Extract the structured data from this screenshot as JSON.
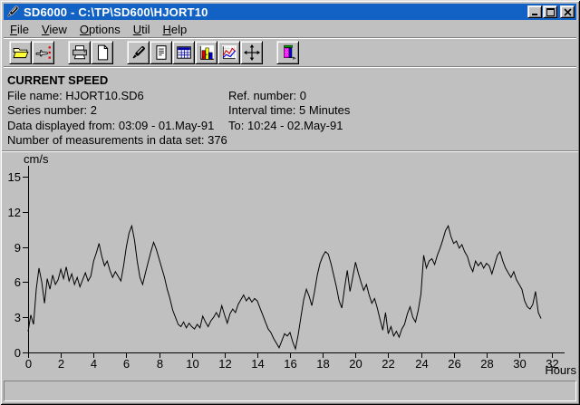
{
  "window": {
    "title": "SD6000 - C:\\TP\\SD600\\HJORT10",
    "icon": "marker-pen-icon",
    "controls": [
      {
        "name": "minimize"
      },
      {
        "name": "maximize"
      },
      {
        "name": "close"
      }
    ]
  },
  "menu": {
    "items": [
      {
        "label": "File"
      },
      {
        "label": "View"
      },
      {
        "label": "Options"
      },
      {
        "label": "Util"
      },
      {
        "label": "Help"
      }
    ]
  },
  "toolbar": {
    "buttons": [
      {
        "name": "open-file",
        "icon": "open-folder-icon"
      },
      {
        "name": "select-series",
        "icon": "pointing-hand-icon"
      },
      {
        "name": "print",
        "icon": "printer-icon"
      },
      {
        "name": "page",
        "icon": "page-icon"
      },
      {
        "name": "marker",
        "icon": "marker-pen-icon"
      },
      {
        "name": "report",
        "icon": "document-icon"
      },
      {
        "name": "data-table",
        "icon": "table-icon"
      },
      {
        "name": "bar-chart",
        "icon": "bar-chart-icon"
      },
      {
        "name": "line-chart",
        "icon": "line-chart-icon"
      },
      {
        "name": "pan",
        "icon": "pan-arrows-icon"
      },
      {
        "name": "exit",
        "icon": "exit-door-icon"
      }
    ]
  },
  "info": {
    "heading": "CURRENT SPEED",
    "rows": [
      {
        "left": "File name: HJORT10.SD6",
        "right": "Ref. number: 0"
      },
      {
        "left": "Series number: 2",
        "right": "Interval time: 5 Minutes"
      },
      {
        "left": "Data displayed from: 03:09 - 01.May-91",
        "right": "To: 10:24 - 02.May-91"
      },
      {
        "left": "Number of measurements in data set: 376",
        "right": ""
      }
    ]
  },
  "status": {
    "text": ""
  },
  "chart_data": {
    "type": "line",
    "title": "",
    "ylabel": "cm/s",
    "xlabel": "Hours",
    "ylim": [
      0,
      15
    ],
    "xlim": [
      0,
      32
    ],
    "y_ticks": [
      0,
      3,
      6,
      9,
      12,
      15
    ],
    "x_ticks": [
      0,
      2,
      4,
      6,
      8,
      10,
      12,
      14,
      16,
      18,
      20,
      22,
      24,
      26,
      28,
      30,
      32
    ],
    "grid": false,
    "line_color": "#000000",
    "series": [
      {
        "name": "current-speed",
        "x_start": 0,
        "x_step": 0.16667,
        "values": [
          1.8,
          3.2,
          2.4,
          5.4,
          7.2,
          6.0,
          4.2,
          6.3,
          5.4,
          6.6,
          5.8,
          6.2,
          7.1,
          6.3,
          7.3,
          6.1,
          6.7,
          5.8,
          6.4,
          5.6,
          6.2,
          6.8,
          6.1,
          6.5,
          7.8,
          8.5,
          9.3,
          8.2,
          7.4,
          7.8,
          7.0,
          6.4,
          6.9,
          6.5,
          6.1,
          7.4,
          9.0,
          10.2,
          10.8,
          9.6,
          7.8,
          6.4,
          5.8,
          6.8,
          7.7,
          8.6,
          9.4,
          8.8,
          8.0,
          7.2,
          6.4,
          5.4,
          4.6,
          3.6,
          3.0,
          2.4,
          2.2,
          2.6,
          2.1,
          2.5,
          2.2,
          2.0,
          2.4,
          2.1,
          3.1,
          2.6,
          2.2,
          2.7,
          3.0,
          3.4,
          3.0,
          4.0,
          3.2,
          2.5,
          3.3,
          3.7,
          3.4,
          4.1,
          4.5,
          4.9,
          4.4,
          4.7,
          4.3,
          4.6,
          4.4,
          3.8,
          3.2,
          2.6,
          2.0,
          1.7,
          1.2,
          0.8,
          0.4,
          1.0,
          1.6,
          1.4,
          1.7,
          0.9,
          0.3,
          1.5,
          3.0,
          4.5,
          5.4,
          4.8,
          4.0,
          5.2,
          6.6,
          7.6,
          8.2,
          8.6,
          8.4,
          7.6,
          6.6,
          5.6,
          4.4,
          3.8,
          5.5,
          7.0,
          5.2,
          6.4,
          7.7,
          6.8,
          6.0,
          5.3,
          5.8,
          4.9,
          4.2,
          4.6,
          3.8,
          2.8,
          1.9,
          3.4,
          1.6,
          2.2,
          1.4,
          1.8,
          1.3,
          2.0,
          2.4,
          3.3,
          3.9,
          3.0,
          2.6,
          3.6,
          5.0,
          8.3,
          7.2,
          7.8,
          8.0,
          7.5,
          8.3,
          8.9,
          9.6,
          10.4,
          10.8,
          9.9,
          9.3,
          9.5,
          8.9,
          9.2,
          8.6,
          8.2,
          7.4,
          6.9,
          7.8,
          7.4,
          7.7,
          7.2,
          7.6,
          7.4,
          6.7,
          7.5,
          8.3,
          8.6,
          7.8,
          7.2,
          6.8,
          6.4,
          6.9,
          6.2,
          5.8,
          5.4,
          4.4,
          3.9,
          3.7,
          4.1,
          5.2,
          3.4,
          2.9
        ]
      }
    ],
    "colors": {
      "titlebar": "#1262c6",
      "face": "#c0c0c0",
      "line": "#000000"
    }
  }
}
